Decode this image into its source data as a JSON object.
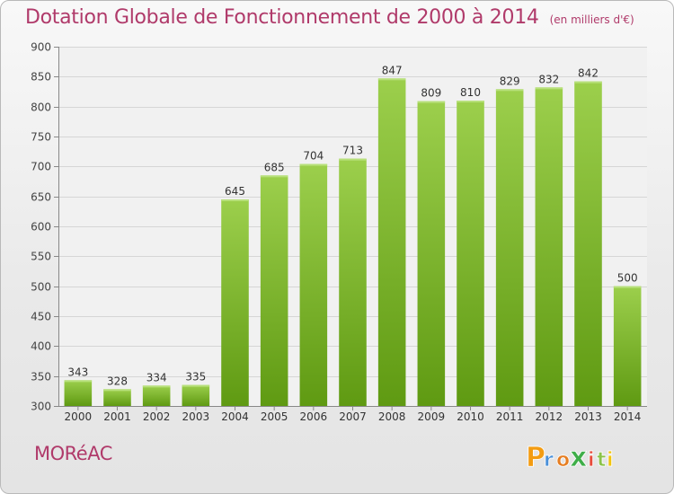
{
  "header": {
    "title": "Dotation Globale de Fonctionnement de 2000 à 2014",
    "subtitle": "(en milliers d'€)"
  },
  "footer": {
    "commune": "MORéAC",
    "logo_text": "Proxiti"
  },
  "colors": {
    "title": "#b03a6a",
    "bar_light": "#9ccf4c",
    "bar_dark": "#5f9a12",
    "logo_letters": [
      "#f39c12",
      "#4a90d9",
      "#e67e22",
      "#3fae49",
      "#e74c3c",
      "#8bc34a",
      "#f1c40f"
    ]
  },
  "chart_data": {
    "type": "bar",
    "title": "Dotation Globale de Fonctionnement de 2000 à 2014",
    "subtitle": "(en milliers d'€)",
    "categories": [
      "2000",
      "2001",
      "2002",
      "2003",
      "2004",
      "2005",
      "2006",
      "2007",
      "2008",
      "2009",
      "2010",
      "2011",
      "2012",
      "2013",
      "2014"
    ],
    "values": [
      343,
      328,
      334,
      335,
      645,
      685,
      704,
      713,
      847,
      809,
      810,
      829,
      832,
      842,
      500
    ],
    "ylim": [
      300,
      900
    ],
    "yticks": [
      300,
      350,
      400,
      450,
      500,
      550,
      600,
      650,
      700,
      750,
      800,
      850,
      900
    ],
    "grid": true,
    "xlabel": "",
    "ylabel": ""
  }
}
